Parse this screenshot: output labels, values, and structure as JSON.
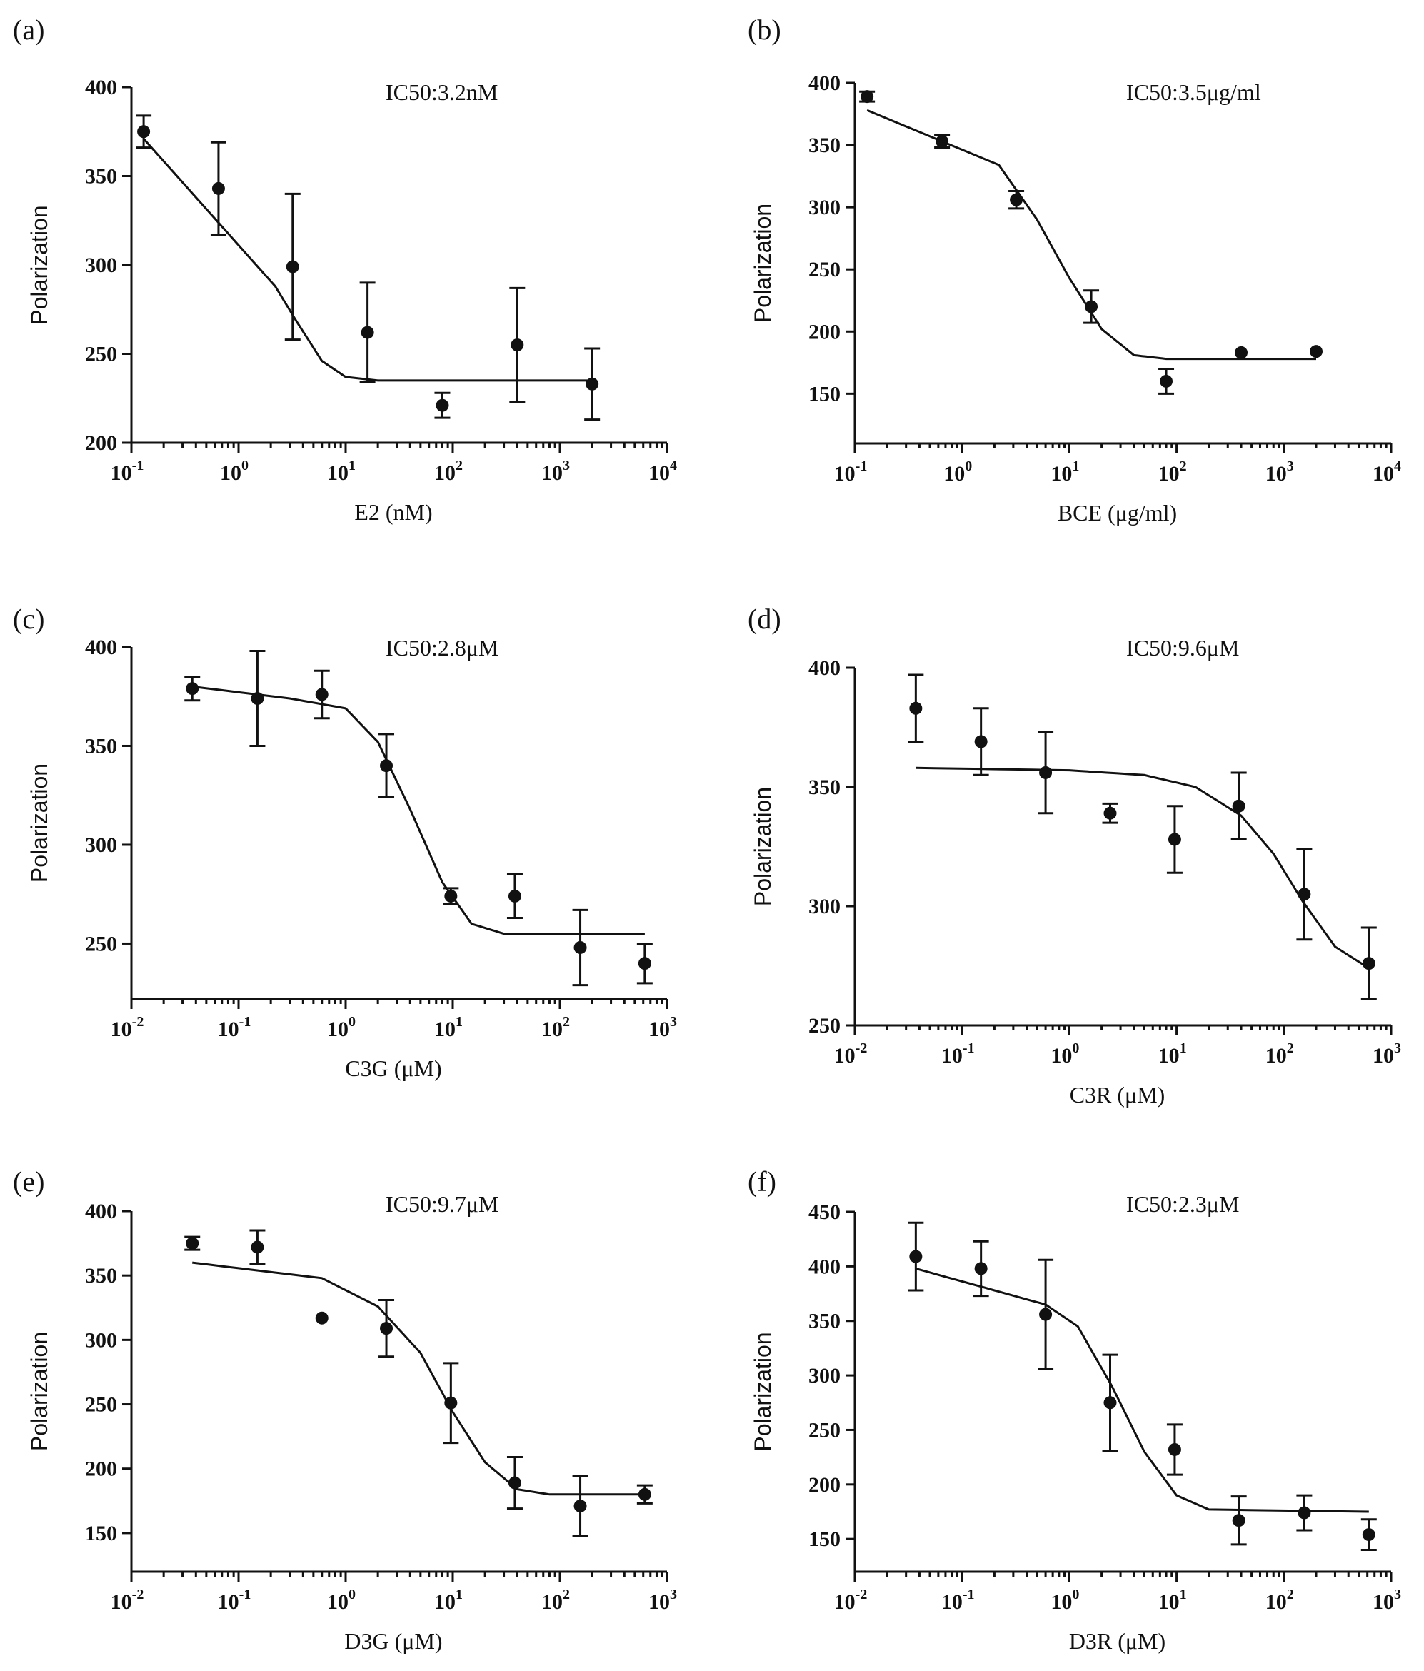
{
  "chart_data": [
    {
      "type": "scatter",
      "panel": "(a)",
      "annotation": "IC50:3.2nM",
      "xlabel": "E2 (nM)",
      "ylabel": "Polarization",
      "x_scale": "log10",
      "x_exp_range": [
        -1,
        4
      ],
      "x_tick_base": "10",
      "x_tick_exponents": [
        "-1",
        "0",
        "1",
        "2",
        "3",
        "4"
      ],
      "ylim": [
        200,
        400
      ],
      "y_ticks": [
        200,
        250,
        300,
        350,
        400
      ],
      "points": [
        {
          "x": 0.13,
          "y": 375,
          "err": 9
        },
        {
          "x": 0.65,
          "y": 343,
          "err": 26
        },
        {
          "x": 3.2,
          "y": 299,
          "err": 41
        },
        {
          "x": 16,
          "y": 262,
          "err": 28
        },
        {
          "x": 80,
          "y": 221,
          "err": 7
        },
        {
          "x": 400,
          "y": 255,
          "err": 32
        },
        {
          "x": 2000,
          "y": 233,
          "err": 20
        }
      ],
      "fit": [
        [
          0.13,
          371
        ],
        [
          2.2,
          288
        ],
        [
          3.5,
          268
        ],
        [
          6,
          246
        ],
        [
          10,
          237
        ],
        [
          20,
          235
        ],
        [
          2000,
          235
        ]
      ]
    },
    {
      "type": "scatter",
      "panel": "(b)",
      "annotation": "IC50:3.5μg/ml",
      "xlabel": "BCE (μg/ml)",
      "ylabel": "Polarization",
      "x_scale": "log10",
      "x_exp_range": [
        -1,
        4
      ],
      "x_tick_base": "10",
      "x_tick_exponents": [
        "-1",
        "0",
        "1",
        "2",
        "3",
        "4"
      ],
      "ylim": [
        110,
        400
      ],
      "y_ticks": [
        150,
        200,
        250,
        300,
        350,
        400
      ],
      "points": [
        {
          "x": 0.13,
          "y": 389,
          "err": 4
        },
        {
          "x": 0.65,
          "y": 353,
          "err": 5
        },
        {
          "x": 3.2,
          "y": 306,
          "err": 7
        },
        {
          "x": 16,
          "y": 220,
          "err": 13
        },
        {
          "x": 80,
          "y": 160,
          "err": 10
        },
        {
          "x": 400,
          "y": 183,
          "err": 0
        },
        {
          "x": 2000,
          "y": 184,
          "err": 0
        }
      ],
      "fit": [
        [
          0.13,
          378
        ],
        [
          2.2,
          334
        ],
        [
          5,
          290
        ],
        [
          10,
          243
        ],
        [
          20,
          202
        ],
        [
          40,
          181
        ],
        [
          80,
          178
        ],
        [
          2000,
          178
        ]
      ]
    },
    {
      "type": "scatter",
      "panel": "(c)",
      "annotation": "IC50:2.8μM",
      "xlabel": "C3G (μM)",
      "ylabel": "Polarization",
      "x_scale": "log10",
      "x_exp_range": [
        -2,
        3
      ],
      "x_tick_base": "10",
      "x_tick_exponents": [
        "-2",
        "-1",
        "0",
        "1",
        "2",
        "3"
      ],
      "ylim": [
        222,
        400
      ],
      "y_ticks": [
        250,
        300,
        350,
        400
      ],
      "points": [
        {
          "x": 0.037,
          "y": 379,
          "err": 6
        },
        {
          "x": 0.15,
          "y": 374,
          "err": 24
        },
        {
          "x": 0.6,
          "y": 376,
          "err": 12
        },
        {
          "x": 2.4,
          "y": 340,
          "err": 16
        },
        {
          "x": 9.6,
          "y": 274,
          "err": 4
        },
        {
          "x": 38,
          "y": 274,
          "err": 11
        },
        {
          "x": 155,
          "y": 248,
          "err": 19
        },
        {
          "x": 620,
          "y": 240,
          "err": 10
        }
      ],
      "fit": [
        [
          0.037,
          380
        ],
        [
          0.3,
          374
        ],
        [
          1,
          369
        ],
        [
          2,
          352
        ],
        [
          4,
          318
        ],
        [
          8,
          281
        ],
        [
          15,
          260
        ],
        [
          30,
          255
        ],
        [
          620,
          255
        ]
      ]
    },
    {
      "type": "scatter",
      "panel": "(d)",
      "annotation": "IC50:9.6μM",
      "xlabel": "C3R (μM)",
      "ylabel": "Polarization",
      "x_scale": "log10",
      "x_exp_range": [
        -2,
        3
      ],
      "x_tick_base": "10",
      "x_tick_exponents": [
        "-2",
        "-1",
        "0",
        "1",
        "2",
        "3"
      ],
      "ylim": [
        250,
        400
      ],
      "y_ticks": [
        250,
        300,
        350,
        400
      ],
      "points": [
        {
          "x": 0.037,
          "y": 383,
          "err": 14
        },
        {
          "x": 0.15,
          "y": 369,
          "err": 14
        },
        {
          "x": 0.6,
          "y": 356,
          "err": 17
        },
        {
          "x": 2.4,
          "y": 339,
          "err": 4
        },
        {
          "x": 9.6,
          "y": 328,
          "err": 14
        },
        {
          "x": 38,
          "y": 342,
          "err": 14
        },
        {
          "x": 155,
          "y": 305,
          "err": 19
        },
        {
          "x": 620,
          "y": 276,
          "err": 15
        }
      ],
      "fit": [
        [
          0.037,
          358
        ],
        [
          1,
          357
        ],
        [
          5,
          355
        ],
        [
          15,
          350
        ],
        [
          40,
          338
        ],
        [
          80,
          322
        ],
        [
          150,
          302
        ],
        [
          300,
          283
        ],
        [
          620,
          274
        ]
      ]
    },
    {
      "type": "scatter",
      "panel": "(e)",
      "annotation": "IC50:9.7μM",
      "xlabel": "D3G (μM)",
      "ylabel": "Polarization",
      "x_scale": "log10",
      "x_exp_range": [
        -2,
        3
      ],
      "x_tick_base": "10",
      "x_tick_exponents": [
        "-2",
        "-1",
        "0",
        "1",
        "2",
        "3"
      ],
      "ylim": [
        120,
        400
      ],
      "y_ticks": [
        150,
        200,
        250,
        300,
        350,
        400
      ],
      "points": [
        {
          "x": 0.037,
          "y": 375,
          "err": 5
        },
        {
          "x": 0.15,
          "y": 372,
          "err": 13
        },
        {
          "x": 0.6,
          "y": 317,
          "err": 0
        },
        {
          "x": 2.4,
          "y": 309,
          "err": 22
        },
        {
          "x": 9.6,
          "y": 251,
          "err": 31
        },
        {
          "x": 38,
          "y": 189,
          "err": 20
        },
        {
          "x": 155,
          "y": 171,
          "err": 23
        },
        {
          "x": 620,
          "y": 180,
          "err": 7
        }
      ],
      "fit": [
        [
          0.037,
          360
        ],
        [
          0.6,
          348
        ],
        [
          2,
          326
        ],
        [
          5,
          290
        ],
        [
          10,
          244
        ],
        [
          20,
          205
        ],
        [
          40,
          184
        ],
        [
          80,
          180
        ],
        [
          620,
          180
        ]
      ]
    },
    {
      "type": "scatter",
      "panel": "(f)",
      "annotation": "IC50:2.3μM",
      "xlabel": "D3R (μM)",
      "ylabel": "Polarization",
      "x_scale": "log10",
      "x_exp_range": [
        -2,
        3
      ],
      "x_tick_base": "10",
      "x_tick_exponents": [
        "-2",
        "-1",
        "0",
        "1",
        "2",
        "3"
      ],
      "ylim": [
        120,
        450
      ],
      "y_ticks": [
        150,
        200,
        250,
        300,
        350,
        400,
        450
      ],
      "points": [
        {
          "x": 0.037,
          "y": 409,
          "err": 31
        },
        {
          "x": 0.15,
          "y": 398,
          "err": 25
        },
        {
          "x": 0.6,
          "y": 356,
          "err": 50
        },
        {
          "x": 2.4,
          "y": 275,
          "err": 44
        },
        {
          "x": 9.6,
          "y": 232,
          "err": 23
        },
        {
          "x": 38,
          "y": 167,
          "err": 22
        },
        {
          "x": 155,
          "y": 174,
          "err": 16
        },
        {
          "x": 620,
          "y": 154,
          "err": 14
        }
      ],
      "fit": [
        [
          0.037,
          398
        ],
        [
          0.2,
          378
        ],
        [
          0.6,
          365
        ],
        [
          1.2,
          345
        ],
        [
          2.5,
          290
        ],
        [
          5,
          230
        ],
        [
          10,
          190
        ],
        [
          20,
          177
        ],
        [
          620,
          175
        ]
      ]
    }
  ]
}
